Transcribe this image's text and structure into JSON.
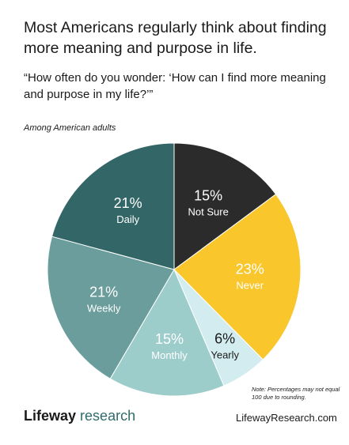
{
  "chart_data": {
    "type": "pie",
    "title": "Most Americans regularly think about finding more meaning and purpose in life.",
    "subtitle": "“How often do you wonder: ‘How can I find more meaning and purpose in my life?’”",
    "population_note": "Among American adults",
    "footnote": "Note: Percentages may not equal 100 due to rounding.",
    "slices": [
      {
        "label": "Not Sure",
        "value": 15,
        "display": "15%",
        "color": "#2b2b2b",
        "text_color": "#ffffff"
      },
      {
        "label": "Never",
        "value": 23,
        "display": "23%",
        "color": "#f9c62b",
        "text_color": "#ffffff"
      },
      {
        "label": "Yearly",
        "value": 6,
        "display": "6%",
        "color": "#d3ecef",
        "text_color": "#1a1a1a"
      },
      {
        "label": "Monthly",
        "value": 15,
        "display": "15%",
        "color": "#9dcdcb",
        "text_color": "#ffffff"
      },
      {
        "label": "Weekly",
        "value": 21,
        "display": "21%",
        "color": "#6a9d9b",
        "text_color": "#ffffff"
      },
      {
        "label": "Daily",
        "value": 21,
        "display": "21%",
        "color": "#336666",
        "text_color": "#ffffff"
      }
    ]
  },
  "branding": {
    "logo_brand": "Lifeway",
    "logo_word": "research",
    "website": "LifewayResearch.com"
  }
}
